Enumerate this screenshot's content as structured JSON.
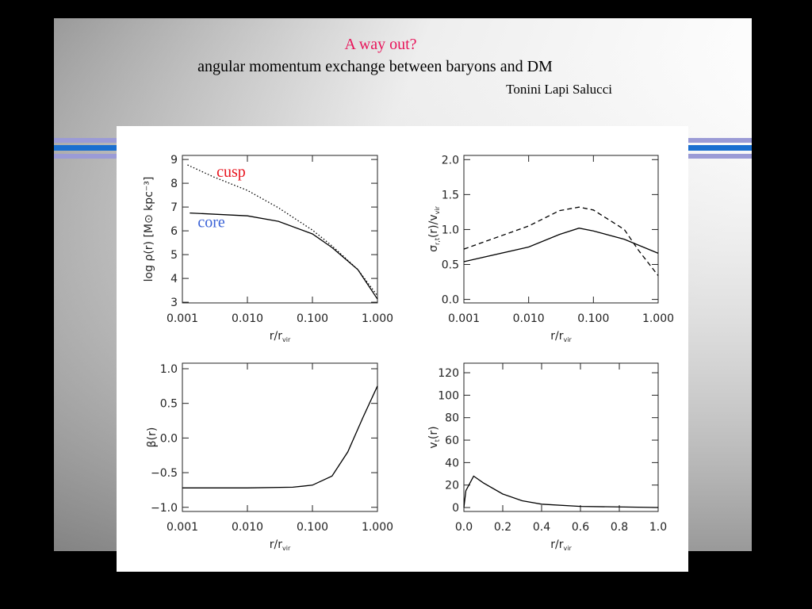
{
  "title": "A way out?",
  "subtitle": "angular momentum exchange between baryons and DM",
  "authors": "Tonini Lapi Salucci",
  "chart_data": [
    {
      "type": "line",
      "xscale": "log",
      "xlim": [
        0.001,
        1.0
      ],
      "ylim": [
        2.97,
        9.17
      ],
      "xticks": [
        {
          "value": 0.001,
          "label": "0.001"
        },
        {
          "value": 0.01,
          "label": "0.010"
        },
        {
          "value": 0.1,
          "label": "0.100"
        },
        {
          "value": 1.0,
          "label": "1.000"
        }
      ],
      "yticks": [
        3,
        4,
        5,
        6,
        7,
        8,
        9
      ],
      "x_label": [
        "r/r",
        "vir"
      ],
      "y_label": [
        "log ρ(r) [M⊙ kpc⁻³]"
      ],
      "series": [
        {
          "name": "cusp",
          "label_color": "#e8141e",
          "color": "#000000",
          "dash": "dotted",
          "x": [
            0.0012,
            0.003,
            0.01,
            0.03,
            0.1,
            0.2,
            0.5,
            1.0
          ],
          "values": [
            8.77,
            8.27,
            7.7,
            6.97,
            6.03,
            5.37,
            4.37,
            3.27
          ]
        },
        {
          "name": "core",
          "label_color": "#3a62d6",
          "color": "#000000",
          "dash": "solid",
          "x": [
            0.0013,
            0.01,
            0.03,
            0.1,
            0.2,
            0.5,
            1.0
          ],
          "values": [
            6.75,
            6.63,
            6.4,
            5.87,
            5.3,
            4.37,
            3.13
          ]
        }
      ]
    },
    {
      "type": "line",
      "xscale": "log",
      "xlim": [
        0.001,
        1.0
      ],
      "ylim": [
        -0.05,
        2.06
      ],
      "xticks": [
        {
          "value": 0.001,
          "label": "0.001"
        },
        {
          "value": 0.01,
          "label": "0.010"
        },
        {
          "value": 0.1,
          "label": "0.100"
        },
        {
          "value": 1.0,
          "label": "1.000"
        }
      ],
      "yticks": [
        {
          "value": 0,
          "label": "0.0"
        },
        0.5,
        {
          "value": 1,
          "label": "1.0"
        },
        1.5,
        {
          "value": 2,
          "label": "2.0"
        }
      ],
      "x_label": [
        "r/r",
        "vir"
      ],
      "y_label": [
        "σ",
        "r,t",
        "(r)/v",
        "vir"
      ],
      "series": [
        {
          "color": "#000000",
          "dash": "solid",
          "x": [
            0.001,
            0.01,
            0.03,
            0.06,
            0.1,
            0.3,
            1.0
          ],
          "values": [
            0.54,
            0.75,
            0.93,
            1.02,
            0.98,
            0.86,
            0.66
          ]
        },
        {
          "color": "#000000",
          "dash": "dashed",
          "x": [
            0.001,
            0.01,
            0.03,
            0.06,
            0.1,
            0.3,
            0.5,
            1.0
          ],
          "values": [
            0.72,
            1.05,
            1.27,
            1.32,
            1.28,
            1.0,
            0.7,
            0.34
          ]
        }
      ]
    },
    {
      "type": "line",
      "xscale": "log",
      "xlim": [
        0.001,
        1.0
      ],
      "ylim": [
        -1.06,
        1.08
      ],
      "xticks": [
        {
          "value": 0.001,
          "label": "0.001"
        },
        {
          "value": 0.01,
          "label": "0.010"
        },
        {
          "value": 0.1,
          "label": "0.100"
        },
        {
          "value": 1.0,
          "label": "1.000"
        }
      ],
      "yticks": [
        {
          "value": -1,
          "label": "−1.0"
        },
        {
          "value": -0.5,
          "label": "−0.5"
        },
        {
          "value": 0,
          "label": "0.0"
        },
        0.5,
        {
          "value": 1,
          "label": "1.0"
        }
      ],
      "x_label": [
        "r/r",
        "vir"
      ],
      "y_label": [
        "β(r)"
      ],
      "series": [
        {
          "color": "#000000",
          "dash": "solid",
          "x": [
            0.001,
            0.01,
            0.05,
            0.1,
            0.2,
            0.35,
            0.6,
            1.0
          ],
          "values": [
            -0.72,
            -0.72,
            -0.71,
            -0.68,
            -0.55,
            -0.2,
            0.3,
            0.75
          ]
        }
      ]
    },
    {
      "type": "line",
      "xscale": "linear",
      "xlim": [
        0,
        1.0
      ],
      "ylim": [
        -3.5,
        128.5
      ],
      "xticks": [
        {
          "value": 0,
          "label": "0.0"
        },
        0.2,
        0.4,
        0.6,
        0.8,
        {
          "value": 1,
          "label": "1.0"
        }
      ],
      "yticks": [
        0,
        20,
        40,
        60,
        80,
        100,
        120
      ],
      "x_label": [
        "r/r",
        "vir"
      ],
      "y_label": [
        "v",
        "t",
        "(r)"
      ],
      "series": [
        {
          "color": "#000000",
          "dash": "solid",
          "x": [
            0,
            0.01,
            0.05,
            0.1,
            0.2,
            0.3,
            0.4,
            0.6,
            1.0
          ],
          "values": [
            0,
            15,
            28,
            22,
            12,
            6,
            3,
            1,
            0
          ]
        }
      ]
    }
  ]
}
